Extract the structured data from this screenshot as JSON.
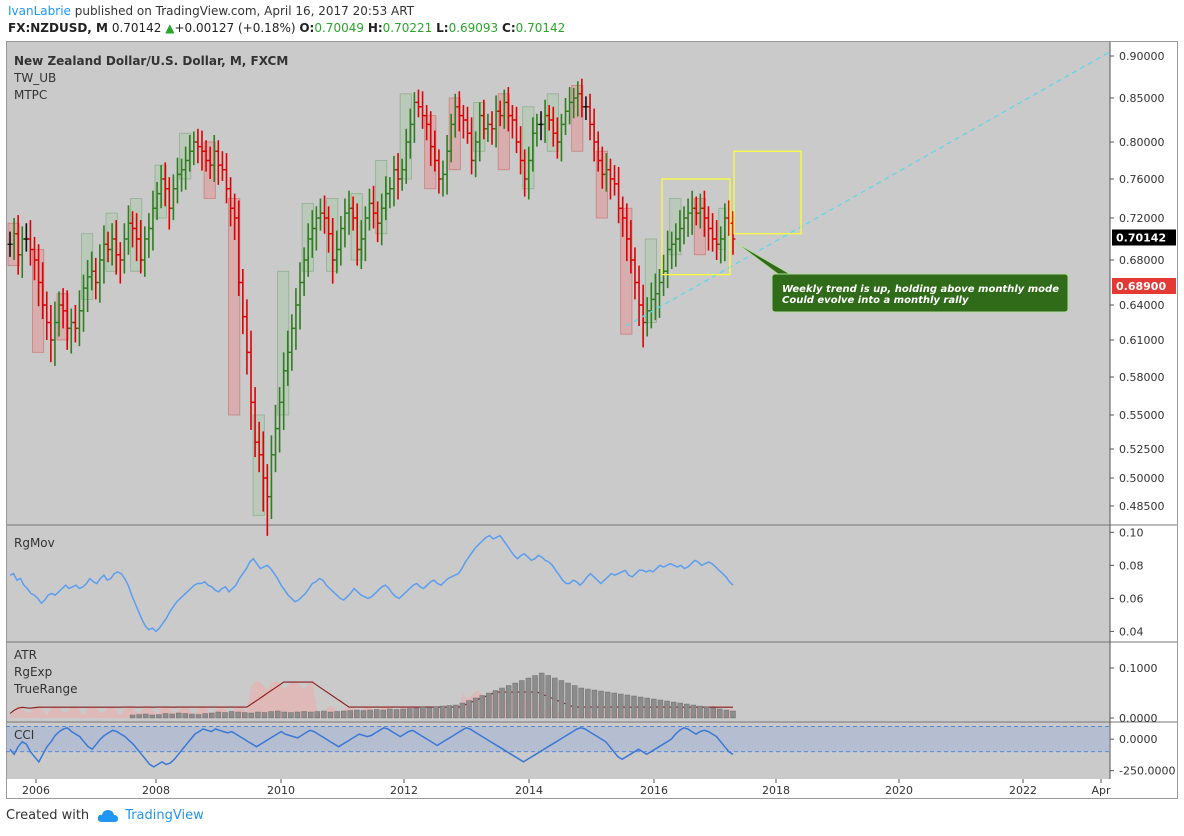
{
  "header": {
    "author": "IvanLabrie",
    "published": " published on TradingView.com, April 16, 2017 20:53 ART",
    "symbol": "FX:NZDUSD, M",
    "price": "0.70142",
    "change": "+0.00127 (+0.18%)",
    "open_label": "O:",
    "open": "0.70049",
    "high_label": "H:",
    "high": "0.70221",
    "low_label": "L:",
    "low": "0.69093",
    "close_label": "C:",
    "close": "0.70142"
  },
  "footer": {
    "created_with": "Created with",
    "brand": "TradingView"
  },
  "colors": {
    "background": "#cacaca",
    "up": "#2e7d1e",
    "down": "#e00000",
    "neutral": "#111111",
    "rgmov": "#5b9ef0",
    "cci": "#3a78d8",
    "trendline": "#5fd8e8",
    "box": "#ffff33",
    "note_bg": "#2f6b18",
    "price_tag": "#000000",
    "mode_tag": "#e53935"
  },
  "chart_data": [
    {
      "type": "candlestick",
      "title": "New Zealand Dollar/U.S. Dollar, M, FXCM",
      "indicators": [
        "TW_UB",
        "MTPC"
      ],
      "x_ticks": [
        "2006",
        "2008",
        "2010",
        "2012",
        "2014",
        "2016",
        "2018",
        "2020",
        "2022",
        "Apr"
      ],
      "y_ticks": [
        "0.90000",
        "0.85000",
        "0.80000",
        "0.76000",
        "0.72000",
        "0.68000",
        "0.64000",
        "0.61000",
        "0.58000",
        "0.55000",
        "0.52500",
        "0.50000",
        "0.48500"
      ],
      "ylim": [
        0.475,
        0.905
      ],
      "last_price": "0.70142",
      "monthly_mode": "0.68900",
      "annotation": [
        "Weekly trend is up, holding above monthly mode",
        "Could evolve into a monthly rally"
      ],
      "closes": [
        0.695,
        0.705,
        0.685,
        0.7,
        0.7,
        0.69,
        0.68,
        0.66,
        0.64,
        0.625,
        0.61,
        0.625,
        0.64,
        0.635,
        0.62,
        0.625,
        0.62,
        0.635,
        0.655,
        0.665,
        0.67,
        0.66,
        0.68,
        0.695,
        0.69,
        0.7,
        0.685,
        0.68,
        0.7,
        0.715,
        0.71,
        0.7,
        0.68,
        0.7,
        0.71,
        0.73,
        0.745,
        0.76,
        0.75,
        0.73,
        0.75,
        0.765,
        0.77,
        0.78,
        0.79,
        0.8,
        0.795,
        0.79,
        0.78,
        0.775,
        0.79,
        0.775,
        0.77,
        0.75,
        0.73,
        0.72,
        0.66,
        0.63,
        0.6,
        0.56,
        0.53,
        0.52,
        0.5,
        0.49,
        0.52,
        0.54,
        0.56,
        0.585,
        0.6,
        0.62,
        0.64,
        0.66,
        0.68,
        0.7,
        0.71,
        0.72,
        0.725,
        0.72,
        0.705,
        0.68,
        0.69,
        0.71,
        0.725,
        0.73,
        0.72,
        0.69,
        0.7,
        0.72,
        0.735,
        0.725,
        0.715,
        0.73,
        0.745,
        0.75,
        0.77,
        0.76,
        0.77,
        0.8,
        0.82,
        0.845,
        0.84,
        0.83,
        0.82,
        0.795,
        0.78,
        0.76,
        0.765,
        0.79,
        0.82,
        0.84,
        0.83,
        0.825,
        0.81,
        0.78,
        0.8,
        0.83,
        0.815,
        0.82,
        0.815,
        0.835,
        0.83,
        0.845,
        0.83,
        0.825,
        0.8,
        0.78,
        0.76,
        0.78,
        0.81,
        0.82,
        0.82,
        0.83,
        0.825,
        0.81,
        0.8,
        0.82,
        0.835,
        0.845,
        0.85,
        0.855,
        0.84,
        0.84,
        0.82,
        0.8,
        0.78,
        0.765,
        0.77,
        0.76,
        0.755,
        0.73,
        0.72,
        0.7,
        0.68,
        0.66,
        0.64,
        0.625,
        0.635,
        0.645,
        0.65,
        0.66,
        0.67,
        0.69,
        0.695,
        0.7,
        0.71,
        0.72,
        0.725,
        0.73,
        0.725,
        0.73,
        0.72,
        0.71,
        0.7,
        0.695,
        0.7,
        0.72,
        0.715,
        0.7
      ]
    },
    {
      "type": "line",
      "title": "RgMov",
      "y_ticks": [
        "0.10",
        "0.08",
        "0.06",
        "0.04"
      ],
      "ylim": [
        0.036,
        0.102
      ],
      "values": [
        0.074,
        0.075,
        0.071,
        0.072,
        0.068,
        0.066,
        0.063,
        0.062,
        0.06,
        0.057,
        0.059,
        0.062,
        0.063,
        0.062,
        0.064,
        0.066,
        0.068,
        0.066,
        0.067,
        0.068,
        0.066,
        0.067,
        0.069,
        0.072,
        0.07,
        0.069,
        0.072,
        0.074,
        0.071,
        0.072,
        0.075,
        0.076,
        0.075,
        0.072,
        0.068,
        0.062,
        0.057,
        0.052,
        0.047,
        0.043,
        0.041,
        0.042,
        0.04,
        0.042,
        0.045,
        0.048,
        0.052,
        0.055,
        0.058,
        0.06,
        0.062,
        0.064,
        0.066,
        0.068,
        0.069,
        0.069,
        0.07,
        0.068,
        0.067,
        0.065,
        0.064,
        0.066,
        0.067,
        0.064,
        0.066,
        0.068,
        0.072,
        0.075,
        0.078,
        0.082,
        0.084,
        0.081,
        0.078,
        0.079,
        0.08,
        0.078,
        0.075,
        0.072,
        0.068,
        0.065,
        0.062,
        0.06,
        0.058,
        0.059,
        0.061,
        0.063,
        0.066,
        0.069,
        0.07,
        0.072,
        0.071,
        0.068,
        0.066,
        0.064,
        0.062,
        0.06,
        0.059,
        0.061,
        0.063,
        0.066,
        0.064,
        0.062,
        0.061,
        0.06,
        0.061,
        0.063,
        0.065,
        0.067,
        0.068,
        0.066,
        0.063,
        0.061,
        0.06,
        0.062,
        0.064,
        0.066,
        0.068,
        0.069,
        0.067,
        0.066,
        0.068,
        0.07,
        0.071,
        0.069,
        0.068,
        0.07,
        0.072,
        0.073,
        0.074,
        0.075,
        0.078,
        0.082,
        0.085,
        0.088,
        0.091,
        0.093,
        0.095,
        0.097,
        0.098,
        0.096,
        0.097,
        0.098,
        0.095,
        0.092,
        0.089,
        0.086,
        0.084,
        0.086,
        0.087,
        0.085,
        0.083,
        0.084,
        0.086,
        0.085,
        0.083,
        0.082,
        0.08,
        0.077,
        0.074,
        0.071,
        0.069,
        0.069,
        0.071,
        0.07,
        0.068,
        0.07,
        0.073,
        0.075,
        0.073,
        0.071,
        0.069,
        0.071,
        0.073,
        0.075,
        0.074,
        0.075,
        0.076,
        0.077,
        0.074,
        0.073,
        0.075,
        0.077,
        0.077,
        0.076,
        0.077,
        0.076,
        0.078,
        0.08,
        0.079,
        0.08,
        0.081,
        0.08,
        0.079,
        0.08,
        0.078,
        0.079,
        0.081,
        0.083,
        0.082,
        0.08,
        0.081,
        0.082,
        0.081,
        0.079,
        0.077,
        0.075,
        0.073,
        0.07,
        0.068
      ]
    },
    {
      "type": "bar",
      "title": "ATR",
      "series_labels": [
        "ATR",
        "RgExp",
        "TrueRange"
      ],
      "y_ticks": [
        "0.1000",
        "0.0000"
      ],
      "ylim": [
        0,
        0.14
      ],
      "values": [
        0.006,
        0.007,
        0.008,
        0.006,
        0.007,
        0.009,
        0.008,
        0.01,
        0.009,
        0.008,
        0.007,
        0.009,
        0.01,
        0.012,
        0.011,
        0.013,
        0.012,
        0.011,
        0.01,
        0.012,
        0.011,
        0.013,
        0.014,
        0.012,
        0.011,
        0.012,
        0.013,
        0.012,
        0.013,
        0.014,
        0.012,
        0.013,
        0.014,
        0.015,
        0.016,
        0.015,
        0.016,
        0.017,
        0.016,
        0.018,
        0.017,
        0.018,
        0.019,
        0.02,
        0.022,
        0.021,
        0.023,
        0.024,
        0.025,
        0.026,
        0.03,
        0.035,
        0.04,
        0.045,
        0.05,
        0.055,
        0.06,
        0.065,
        0.07,
        0.075,
        0.08,
        0.085,
        0.09,
        0.085,
        0.08,
        0.075,
        0.07,
        0.065,
        0.06,
        0.058,
        0.056,
        0.054,
        0.052,
        0.05,
        0.048,
        0.046,
        0.044,
        0.042,
        0.04,
        0.038,
        0.036,
        0.034,
        0.032,
        0.03,
        0.028,
        0.026,
        0.024,
        0.022,
        0.02,
        0.018,
        0.016,
        0.014
      ],
      "bar_colors": [
        "n",
        "n",
        "n",
        "n",
        "n",
        "n",
        "n",
        "n",
        "n",
        "n",
        "n",
        "n",
        "n",
        "n",
        "n",
        "n",
        "n",
        "n",
        "n",
        "n",
        "n",
        "n",
        "n",
        "n",
        "n",
        "n",
        "n",
        "n",
        "n",
        "n",
        "n",
        "n",
        "n",
        "n",
        "n",
        "n",
        "n",
        "n",
        "n",
        "n",
        "n",
        "n",
        "n",
        "n",
        "n",
        "n",
        "n",
        "n",
        "n",
        "n",
        "n",
        "n",
        "n",
        "n",
        "n",
        "n",
        "n",
        "n",
        "n",
        "n",
        "n",
        "n",
        "n",
        "n",
        "n",
        "n",
        "n",
        "n",
        "n",
        "n",
        "n",
        "n",
        "n",
        "n",
        "n",
        "n",
        "n",
        "n",
        "n",
        "n",
        "n",
        "n",
        "n",
        "n",
        "n",
        "n",
        "n",
        "n",
        "n",
        "n",
        "n",
        "n"
      ]
    },
    {
      "type": "line",
      "title": "CCI",
      "y_ticks": [
        "0.0000",
        "-250.0000"
      ],
      "ylim": [
        -300,
        120
      ],
      "band": [
        -100,
        100
      ],
      "values": [
        -80,
        -120,
        -60,
        -20,
        -40,
        -100,
        -140,
        -180,
        -120,
        -60,
        -20,
        30,
        60,
        80,
        90,
        60,
        40,
        20,
        -20,
        -60,
        -80,
        -40,
        0,
        30,
        50,
        70,
        60,
        40,
        20,
        -10,
        -40,
        -80,
        -120,
        -160,
        -200,
        -220,
        -200,
        -180,
        -200,
        -190,
        -160,
        -120,
        -80,
        -40,
        0,
        40,
        60,
        80,
        70,
        60,
        80,
        70,
        60,
        50,
        60,
        40,
        20,
        0,
        -20,
        -40,
        -60,
        -40,
        -20,
        0,
        20,
        40,
        60,
        40,
        30,
        20,
        10,
        30,
        50,
        70,
        60,
        40,
        20,
        0,
        -20,
        -40,
        -60,
        -40,
        -20,
        0,
        20,
        40,
        30,
        20,
        30,
        50,
        70,
        90,
        80,
        60,
        40,
        20,
        40,
        60,
        70,
        50,
        30,
        10,
        -10,
        -30,
        -50,
        -30,
        -10,
        10,
        30,
        50,
        70,
        90,
        80,
        60,
        40,
        20,
        0,
        -20,
        -40,
        -60,
        -80,
        -100,
        -120,
        -140,
        -160,
        -180,
        -160,
        -140,
        -120,
        -100,
        -80,
        -60,
        -40,
        -20,
        0,
        20,
        40,
        60,
        80,
        90,
        80,
        60,
        40,
        20,
        0,
        -20,
        -60,
        -100,
        -140,
        -160,
        -140,
        -120,
        -100,
        -80,
        -100,
        -120,
        -100,
        -80,
        -60,
        -40,
        -20,
        0,
        40,
        70,
        90,
        80,
        60,
        40,
        60,
        70,
        60,
        40,
        20,
        -20,
        -60,
        -100,
        -120
      ]
    }
  ]
}
